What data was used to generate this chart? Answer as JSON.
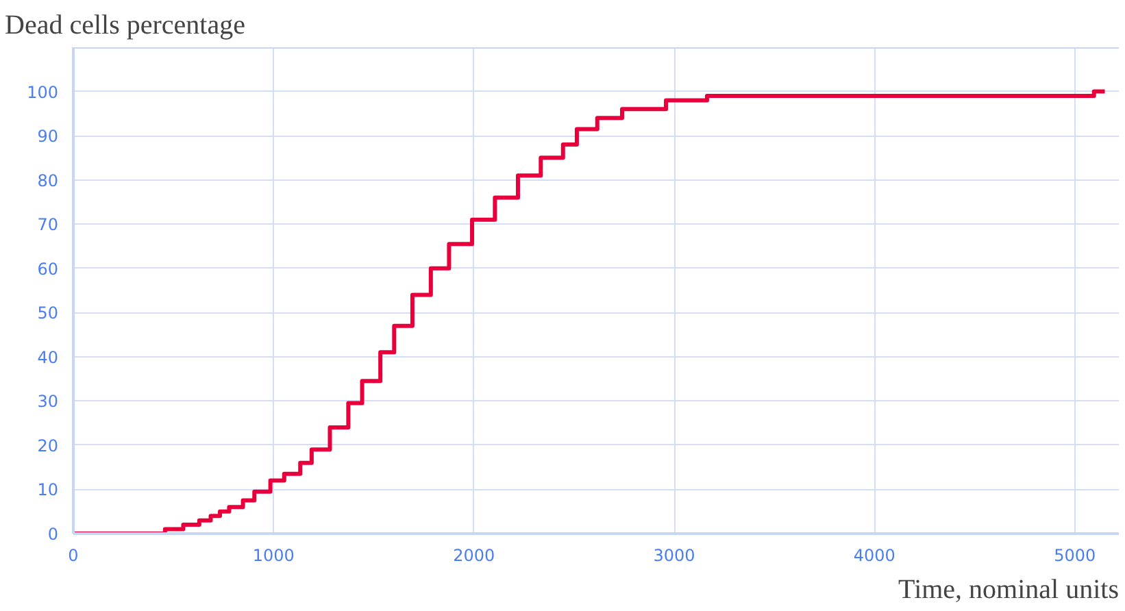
{
  "chart_data": {
    "type": "step",
    "title": "Dead cells percentage",
    "xlabel": "Time, nominal units",
    "x": [
      0,
      458,
      549,
      629,
      686,
      732,
      778,
      847,
      904,
      984,
      1053,
      1133,
      1190,
      1281,
      1373,
      1442,
      1533,
      1602,
      1693,
      1785,
      1876,
      1991,
      2105,
      2220,
      2334,
      2445,
      2514,
      2616,
      2740,
      2959,
      3164,
      5096,
      5150
    ],
    "series": [
      {
        "color": "#e8003d",
        "values": [
          0,
          1,
          2,
          3,
          4,
          5,
          6,
          7.5,
          9.5,
          12,
          13.5,
          16,
          19,
          24,
          29.5,
          34.5,
          41,
          47,
          54,
          60,
          65.5,
          71,
          76,
          81,
          85,
          88,
          91.5,
          94,
          96,
          98,
          99,
          100,
          100
        ]
      }
    ],
    "xlim": [
      0,
      5220
    ],
    "xticks": [
      0,
      1000,
      2000,
      3000,
      4000,
      5000
    ],
    "ylim": [
      0,
      110
    ],
    "yticks": [
      0,
      10,
      20,
      30,
      40,
      50,
      60,
      70,
      80,
      90,
      100
    ],
    "grid": true,
    "marker": "none",
    "line_style": "solid"
  }
}
